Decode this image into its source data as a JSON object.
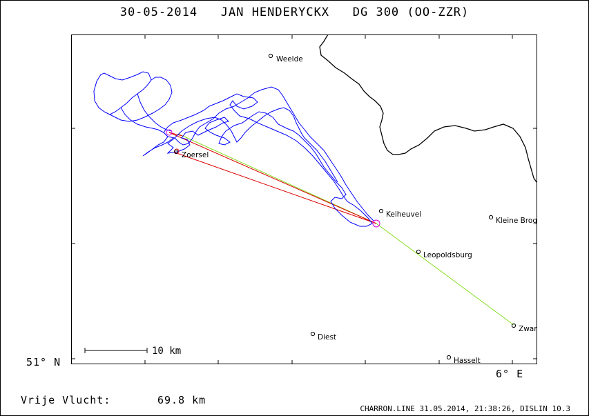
{
  "title": "30-05-2014   JAN HENDERYCKX   DG 300 (OO-ZZR)",
  "axes": {
    "lat_label": "51° N",
    "lon_label": "6° E"
  },
  "scale_bar": {
    "label": "10 km"
  },
  "distance": {
    "label": "Vrije Vlucht:",
    "value": "69.8 km"
  },
  "footer": "CHARRON.LINE 31.05.2014, 21:38:26, DISLIN 10.3",
  "towns": [
    "Weelde",
    "Zoersel",
    "Keiheuvel",
    "Kleine Brogel",
    "Leopoldsburg",
    "Zwartberg",
    "Diest",
    "Hasselt"
  ],
  "colors": {
    "track": "#0000ff",
    "task_line": "#88dd22",
    "free_flight_line": "#dd0000",
    "turnpoint_circle": "#dd00dd",
    "border": "#000000"
  }
}
